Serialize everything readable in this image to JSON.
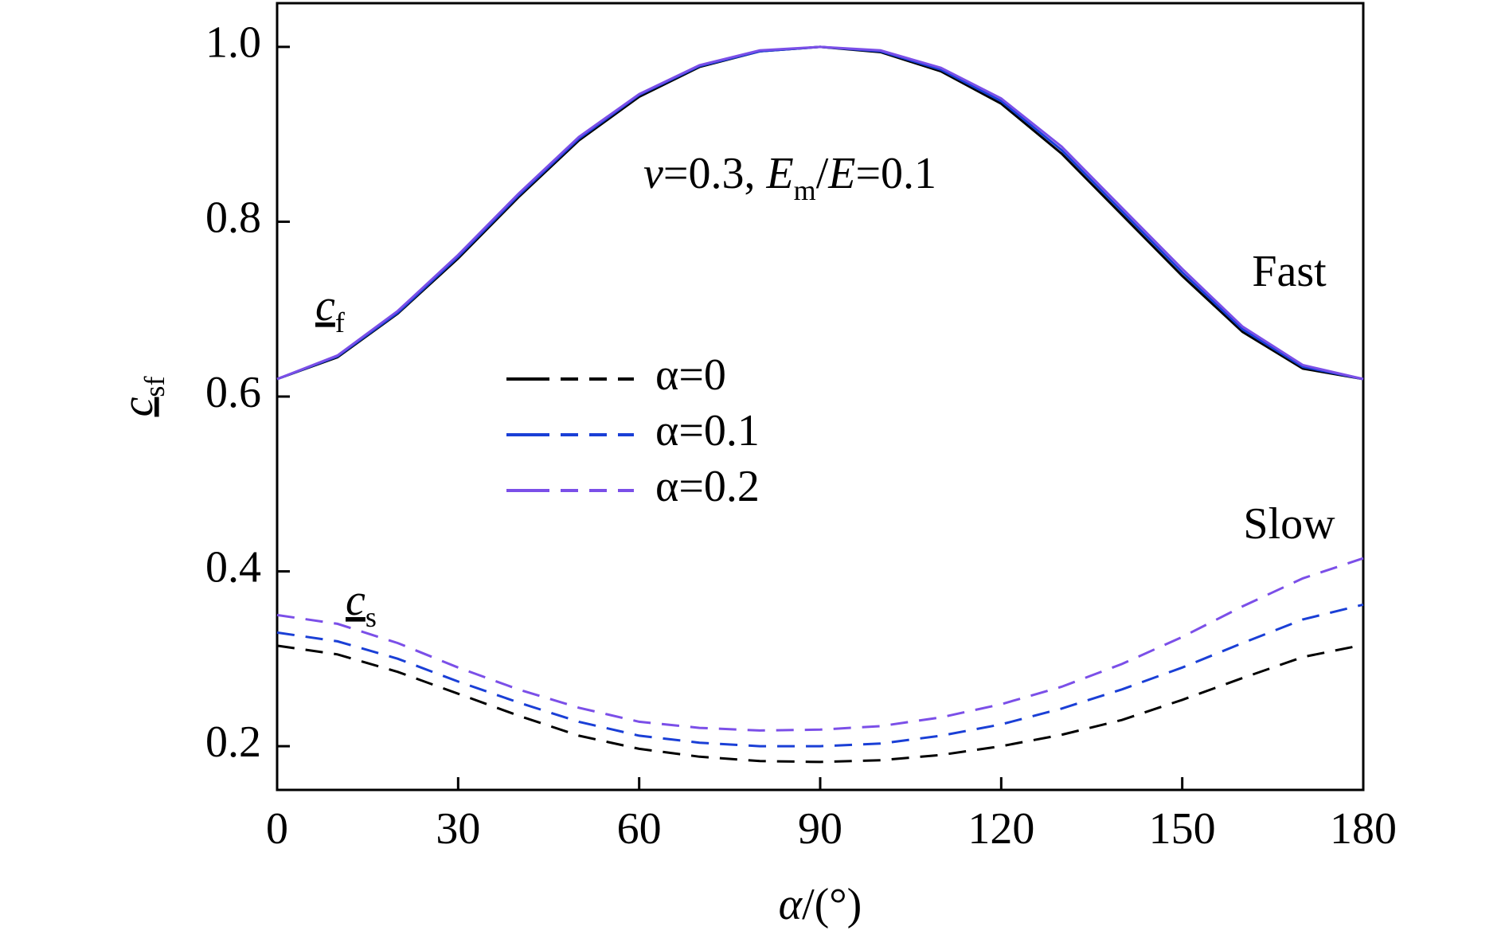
{
  "chart_data": {
    "type": "line",
    "xlabel": [
      {
        "text": "α",
        "style": "italic"
      },
      {
        "text": "/(°)",
        "style": "plain"
      }
    ],
    "ylabel": [
      {
        "text": "c",
        "style": "underline-italic"
      },
      {
        "text": "sf",
        "style": "sub"
      }
    ],
    "annotations": [
      {
        "parts": [
          {
            "text": "v",
            "style": "italic"
          },
          {
            "text": "=0.3, ",
            "style": "plain"
          },
          {
            "text": "E",
            "style": "italic"
          },
          {
            "text": "m",
            "style": "sub"
          },
          {
            "text": "/",
            "style": "plain"
          },
          {
            "text": "E",
            "style": "italic"
          },
          {
            "text": "=0.1",
            "style": "plain"
          }
        ]
      },
      {
        "parts": [
          {
            "text": "Fast",
            "style": "plain"
          }
        ]
      },
      {
        "parts": [
          {
            "text": "Slow",
            "style": "plain"
          }
        ]
      },
      {
        "parts": [
          {
            "text": "c",
            "style": "underline-italic"
          },
          {
            "text": "f",
            "style": "sub"
          }
        ]
      },
      {
        "parts": [
          {
            "text": "c",
            "style": "underline-italic"
          },
          {
            "text": "s",
            "style": "sub"
          }
        ]
      }
    ],
    "x": [
      0,
      10,
      20,
      30,
      40,
      50,
      60,
      70,
      80,
      90,
      100,
      110,
      120,
      130,
      140,
      150,
      160,
      170,
      180
    ],
    "series": [
      {
        "name": "α=0",
        "color": "#000000",
        "values": [
          0.62,
          0.645,
          0.695,
          0.758,
          0.828,
          0.893,
          0.943,
          0.977,
          0.995,
          1.0,
          0.994,
          0.972,
          0.935,
          0.878,
          0.808,
          0.738,
          0.674,
          0.632,
          0.62
        ],
        "slow_values": [
          0.315,
          0.305,
          0.285,
          0.26,
          0.235,
          0.212,
          0.197,
          0.188,
          0.183,
          0.182,
          0.184,
          0.19,
          0.2,
          0.213,
          0.23,
          0.253,
          0.278,
          0.302,
          0.316
        ]
      },
      {
        "name": "α=0.1",
        "color": "#1a3fd6",
        "values": [
          0.62,
          0.646,
          0.696,
          0.76,
          0.83,
          0.895,
          0.945,
          0.978,
          0.995,
          1.0,
          0.995,
          0.974,
          0.938,
          0.882,
          0.812,
          0.742,
          0.677,
          0.634,
          0.62
        ],
        "slow_values": [
          0.33,
          0.32,
          0.3,
          0.274,
          0.25,
          0.228,
          0.212,
          0.204,
          0.2,
          0.2,
          0.203,
          0.212,
          0.225,
          0.243,
          0.265,
          0.29,
          0.318,
          0.345,
          0.362
        ]
      },
      {
        "name": "α=0.2",
        "color": "#7b4fe8",
        "values": [
          0.62,
          0.647,
          0.698,
          0.762,
          0.832,
          0.897,
          0.946,
          0.979,
          0.996,
          1.0,
          0.996,
          0.976,
          0.941,
          0.886,
          0.816,
          0.746,
          0.68,
          0.636,
          0.62
        ],
        "slow_values": [
          0.35,
          0.34,
          0.318,
          0.29,
          0.265,
          0.244,
          0.228,
          0.221,
          0.218,
          0.219,
          0.223,
          0.233,
          0.248,
          0.268,
          0.294,
          0.325,
          0.36,
          0.392,
          0.415
        ]
      }
    ],
    "xlim": [
      0,
      180
    ],
    "xticks": [
      0,
      30,
      60,
      90,
      120,
      150,
      180
    ],
    "ylim": [
      0.15,
      1.05
    ],
    "yticks": [
      0.2,
      0.4,
      0.6,
      0.8,
      {
        "value": 1,
        "label": "1.0"
      }
    ],
    "grid": false
  }
}
